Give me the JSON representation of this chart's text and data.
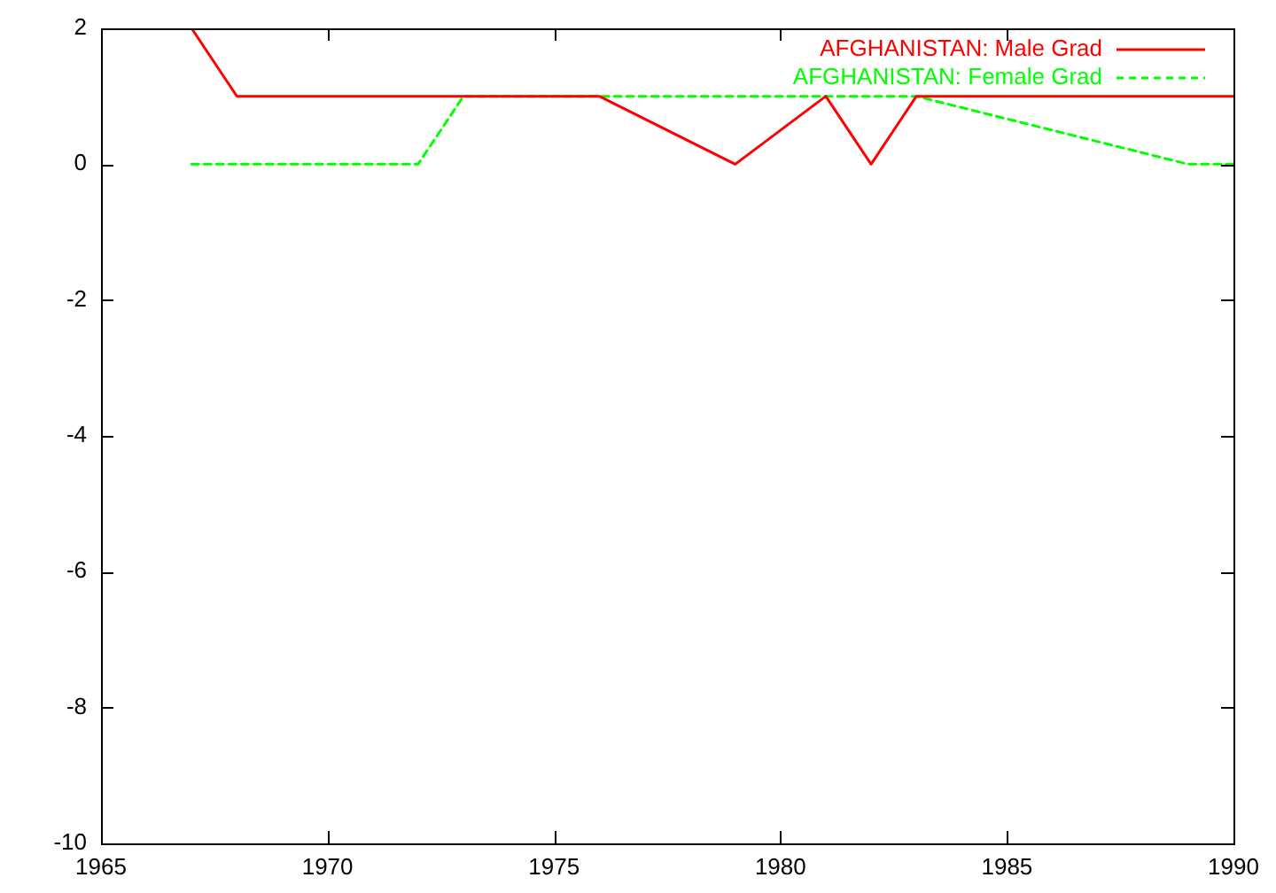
{
  "chart_data": {
    "type": "line",
    "x": [
      1967,
      1968,
      1976,
      1979,
      1981,
      1982,
      1983,
      1990
    ],
    "xlim": [
      1965,
      1990
    ],
    "xticks": [
      1965,
      1970,
      1975,
      1980,
      1985,
      1990
    ],
    "ylim": [
      -10,
      2
    ],
    "yticks": [
      -10,
      -8,
      -6,
      -4,
      -2,
      0,
      2
    ],
    "grid": false,
    "legend": "top right",
    "marker": "none",
    "series": [
      {
        "name": "AFGHANISTAN: Male Grad",
        "color": "#ff0000",
        "line_style": "solid",
        "values": [
          2,
          1,
          1,
          0,
          1,
          0,
          1,
          1
        ]
      },
      {
        "name": "AFGHANISTAN: Female Grad",
        "color": "#00ff00",
        "line_style": "dashed",
        "x": [
          1967,
          1972,
          1973,
          1983,
          1989,
          1990
        ],
        "values": [
          0,
          0,
          1,
          1,
          0,
          0
        ]
      }
    ]
  }
}
